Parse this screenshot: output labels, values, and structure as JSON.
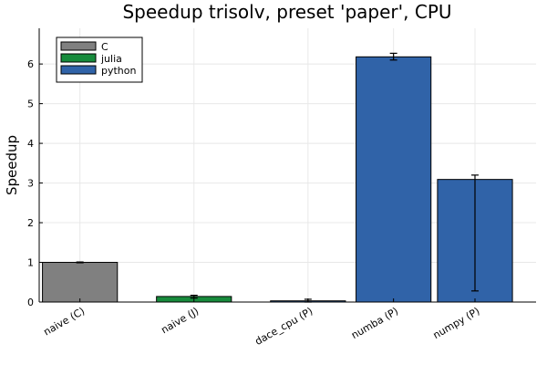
{
  "chart_data": {
    "type": "bar",
    "title": "Speedup trisolv, preset 'paper', CPU",
    "xlabel": "",
    "ylabel": "Speedup",
    "ylim": [
      0,
      6.9
    ],
    "yticks": [
      0,
      1,
      2,
      3,
      4,
      5,
      6
    ],
    "grid": true,
    "legend_position": "top-left",
    "legend": [
      {
        "name": "C",
        "color": "#808080"
      },
      {
        "name": "julia",
        "color": "#178b3c"
      },
      {
        "name": "python",
        "color": "#3063a8"
      }
    ],
    "categories": [
      "naive (C)",
      "naive (J)",
      "dace_cpu (P)",
      "numba (P)",
      "numpy (P)"
    ],
    "values": [
      1.0,
      0.14,
      0.03,
      6.18,
      3.09
    ],
    "error_low": [
      0.99,
      0.1,
      0.0,
      6.1,
      0.28
    ],
    "error_high": [
      1.01,
      0.17,
      0.07,
      6.27,
      3.2
    ],
    "groups": [
      "C",
      "julia",
      "python",
      "python",
      "python"
    ],
    "x_positions": [
      1,
      2.4,
      3.8,
      4.85,
      5.85
    ],
    "xlim": [
      0.5,
      6.6
    ]
  }
}
